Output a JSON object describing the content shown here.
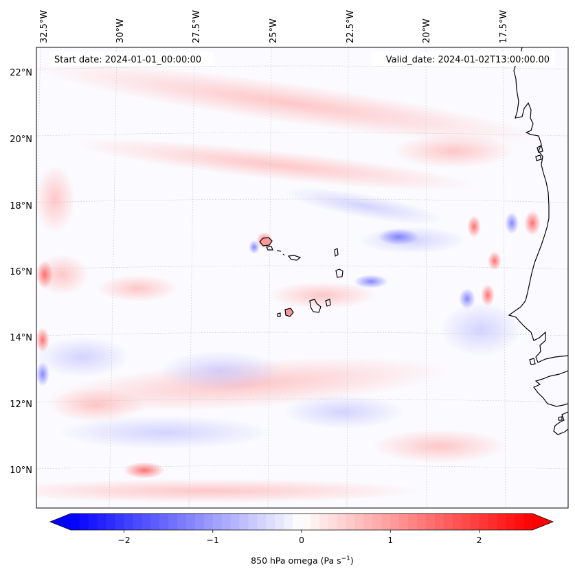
{
  "map": {
    "start_date": "Start date: 2024-01-01_00:00:00",
    "valid_date": "Valid_date: 2024-01-02T13:00:00.00",
    "lon_labels": [
      "32.5°W",
      "30°W",
      "27.5°W",
      "25°W",
      "22.5°W",
      "20°W",
      "17.5°W"
    ],
    "lat_labels": [
      "22°N",
      "20°N",
      "18°N",
      "16°N",
      "14°N",
      "12°N",
      "10°N"
    ],
    "field_name": "850 hPa omega",
    "field_units": "Pa s",
    "units_exponent": "−1"
  },
  "colorbar": {
    "min": -2.6,
    "max": 2.6,
    "ticks": [
      -2,
      -1,
      0,
      1,
      2
    ],
    "tick_labels": [
      "−2",
      "−1",
      "0",
      "1",
      "2"
    ],
    "low_color": "#0000ff",
    "mid_color": "#ffffff",
    "high_color": "#ff0000",
    "levels": 52
  },
  "colors": {
    "land_outline": "#000000",
    "grid": "#bbbbbb"
  }
}
